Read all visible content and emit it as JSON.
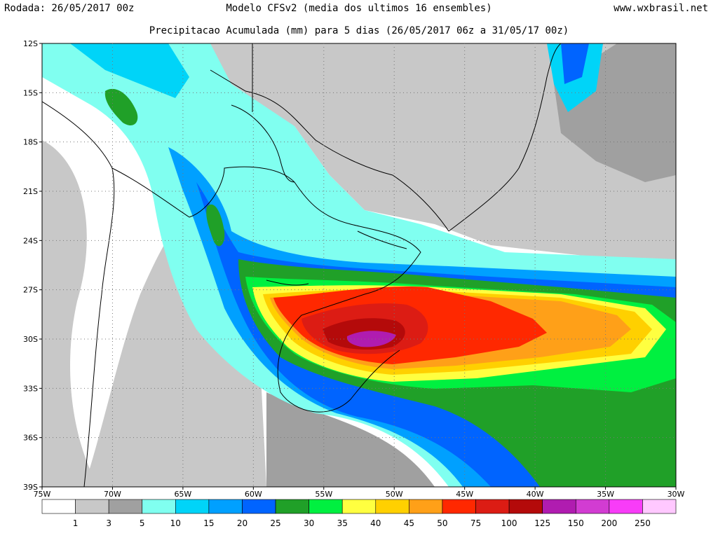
{
  "header": {
    "run_label": "Rodada: 26/05/2017 00z",
    "model_label": "Modelo CFSv2 (media dos ultimos 16 ensembles)",
    "site": "www.wxbrasil.net",
    "subtitle": "Precipitacao Acumulada (mm) para 5 dias (26/05/2017 06z a 31/05/17 00z)"
  },
  "map": {
    "lon_labels": [
      "75W",
      "70W",
      "65W",
      "60W",
      "55W",
      "50W",
      "45W",
      "40W",
      "35W",
      "30W"
    ],
    "lat_labels": [
      "12S",
      "15S",
      "18S",
      "21S",
      "24S",
      "27S",
      "30S",
      "33S",
      "36S",
      "39S"
    ],
    "lon_range": [
      -75,
      -30
    ],
    "lat_range": [
      -39,
      -12
    ],
    "grid": true
  },
  "colorbar": {
    "thresholds": [
      "1",
      "3",
      "5",
      "10",
      "15",
      "20",
      "25",
      "30",
      "35",
      "40",
      "45",
      "50",
      "75",
      "100",
      "125",
      "150",
      "200",
      "250"
    ],
    "colors": [
      "#ffffff",
      "#c8c8c8",
      "#a0a0a0",
      "#80fff0",
      "#00d4f8",
      "#00a0ff",
      "#0064ff",
      "#20a028",
      "#00f040",
      "#ffff40",
      "#ffd000",
      "#ffa018",
      "#ff2800",
      "#dc1c14",
      "#b40a0a",
      "#b01cb0",
      "#d23cd2",
      "#f83cf8",
      "#ffc8ff"
    ]
  }
}
